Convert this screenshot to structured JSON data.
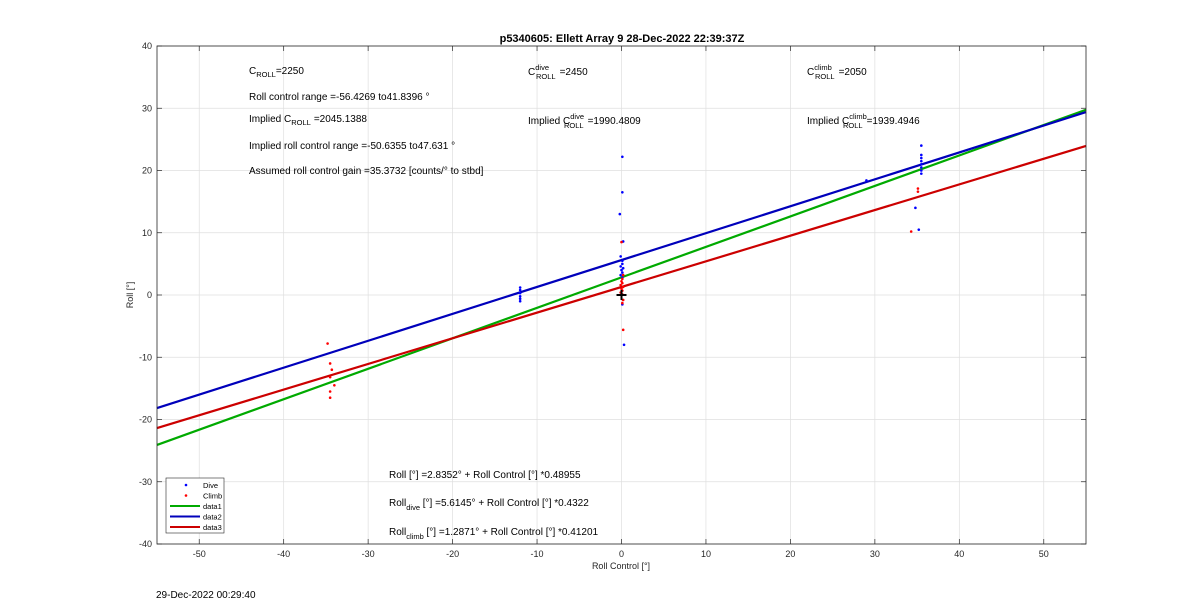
{
  "figure": {
    "timestamp": "29-Dec-2022 00:29:40"
  },
  "chart_data": {
    "type": "scatter",
    "title": "p5340605: Ellett Array 9 28-Dec-2022 22:39:37Z",
    "xlabel": "Roll Control [°]",
    "ylabel": "Roll [°]",
    "xlim": [
      -55,
      55
    ],
    "ylim": [
      -40,
      40
    ],
    "xticks": [
      -50,
      -40,
      -30,
      -20,
      -10,
      0,
      10,
      20,
      30,
      40,
      50
    ],
    "yticks": [
      -40,
      -30,
      -20,
      -10,
      0,
      10,
      20,
      30,
      40
    ],
    "grid": true,
    "legend_position": "bottom-left",
    "annotations": {
      "c_roll": {
        "base": "C",
        "sub": "ROLL",
        "value": "=2250"
      },
      "c_roll_dive": {
        "base": "C",
        "sup": "dive",
        "sub": "ROLL",
        "value": "=2450"
      },
      "c_roll_climb": {
        "base": "C",
        "sup": "climb",
        "sub": "ROLL",
        "value": "=2050"
      },
      "roll_control_range": "Roll control range =-56.4269 to41.8396 °",
      "implied_c_roll": {
        "prefix": "Implied C",
        "sub": "ROLL",
        "value": "=2045.1388"
      },
      "implied_c_roll_dive": {
        "prefix": "Implied C",
        "sup": "dive",
        "sub": "ROLL",
        "value": "=1990.4809"
      },
      "implied_c_roll_climb": {
        "prefix": "Implied C",
        "sup": "climb",
        "sub": "ROLL",
        "value": "=1939.4946"
      },
      "implied_roll_control_range": "Implied roll control range =-50.6355 to47.631 °",
      "assumed_gain": "Assumed roll control gain =35.3732 [counts/° to stbd]",
      "fit_all": "Roll [°] =2.8352° + Roll Control [°] *0.48955",
      "fit_dive": {
        "base": "Roll",
        "sub": "dive",
        "rest": " [°] =5.6145° + Roll Control [°] *0.4322"
      },
      "fit_climb": {
        "base": "Roll",
        "sub": "climb",
        "rest": " [°] =1.2871° + Roll Control [°] *0.41201"
      }
    },
    "colors": {
      "dive": "#0000ff",
      "climb": "#ff0000",
      "data1": "#00aa00",
      "data2": "#0000bb",
      "data3": "#cc0000",
      "origin_marker": "#000000"
    },
    "series": [
      {
        "name": "Dive",
        "kind": "points",
        "color": "#0000ff",
        "points": [
          [
            -12,
            0.3
          ],
          [
            -12,
            -0.2
          ],
          [
            -12,
            0.8
          ],
          [
            -12,
            -1.0
          ],
          [
            -12,
            1.2
          ],
          [
            -12,
            -0.6
          ],
          [
            0.1,
            22.2
          ],
          [
            0.1,
            16.5
          ],
          [
            -0.2,
            13.0
          ],
          [
            0.2,
            8.6
          ],
          [
            -0.1,
            6.2
          ],
          [
            0.1,
            5.5
          ],
          [
            0.1,
            5.0
          ],
          [
            -0.1,
            4.6
          ],
          [
            0.2,
            4.3
          ],
          [
            0,
            4.0
          ],
          [
            0.1,
            3.6
          ],
          [
            -0.1,
            3.2
          ],
          [
            0.1,
            2.8
          ],
          [
            0.1,
            -1.5
          ],
          [
            0.3,
            -8.0
          ],
          [
            29,
            18.4
          ],
          [
            34.8,
            14.0
          ],
          [
            35.2,
            10.5
          ],
          [
            35.5,
            24.0
          ],
          [
            35.5,
            22.5
          ],
          [
            35.5,
            22.0
          ],
          [
            35.5,
            21.5
          ],
          [
            35.5,
            21.0
          ],
          [
            35.5,
            20.5
          ],
          [
            35.5,
            20.0
          ],
          [
            35.5,
            19.5
          ]
        ]
      },
      {
        "name": "Climb",
        "kind": "points",
        "color": "#ff0000",
        "points": [
          [
            -34.8,
            -7.8
          ],
          [
            -34.5,
            -11.0
          ],
          [
            -34.3,
            -12.0
          ],
          [
            -34.5,
            -13.2
          ],
          [
            -34.0,
            -14.5
          ],
          [
            -34.5,
            -15.5
          ],
          [
            -34.5,
            -16.5
          ],
          [
            0,
            8.5
          ],
          [
            0.2,
            3.2
          ],
          [
            0.1,
            2.6
          ],
          [
            0,
            2.2
          ],
          [
            0.1,
            1.9
          ],
          [
            -0.1,
            1.6
          ],
          [
            0.2,
            1.3
          ],
          [
            0,
            1.0
          ],
          [
            0.1,
            0.7
          ],
          [
            -0.1,
            0.4
          ],
          [
            0.1,
            0.1
          ],
          [
            0.2,
            -0.8
          ],
          [
            0.1,
            -1.3
          ],
          [
            0.2,
            -5.6
          ],
          [
            34.3,
            10.2
          ],
          [
            35.1,
            16.6
          ],
          [
            35.1,
            17.1
          ]
        ]
      },
      {
        "name": "data1",
        "kind": "fit",
        "color": "#00aa00",
        "intercept": 2.8352,
        "slope": 0.48955
      },
      {
        "name": "data2",
        "kind": "fit",
        "color": "#0000bb",
        "intercept": 5.6145,
        "slope": 0.4322
      },
      {
        "name": "data3",
        "kind": "fit",
        "color": "#cc0000",
        "intercept": 1.2871,
        "slope": 0.41201
      }
    ],
    "origin_marker": [
      0,
      0
    ]
  }
}
